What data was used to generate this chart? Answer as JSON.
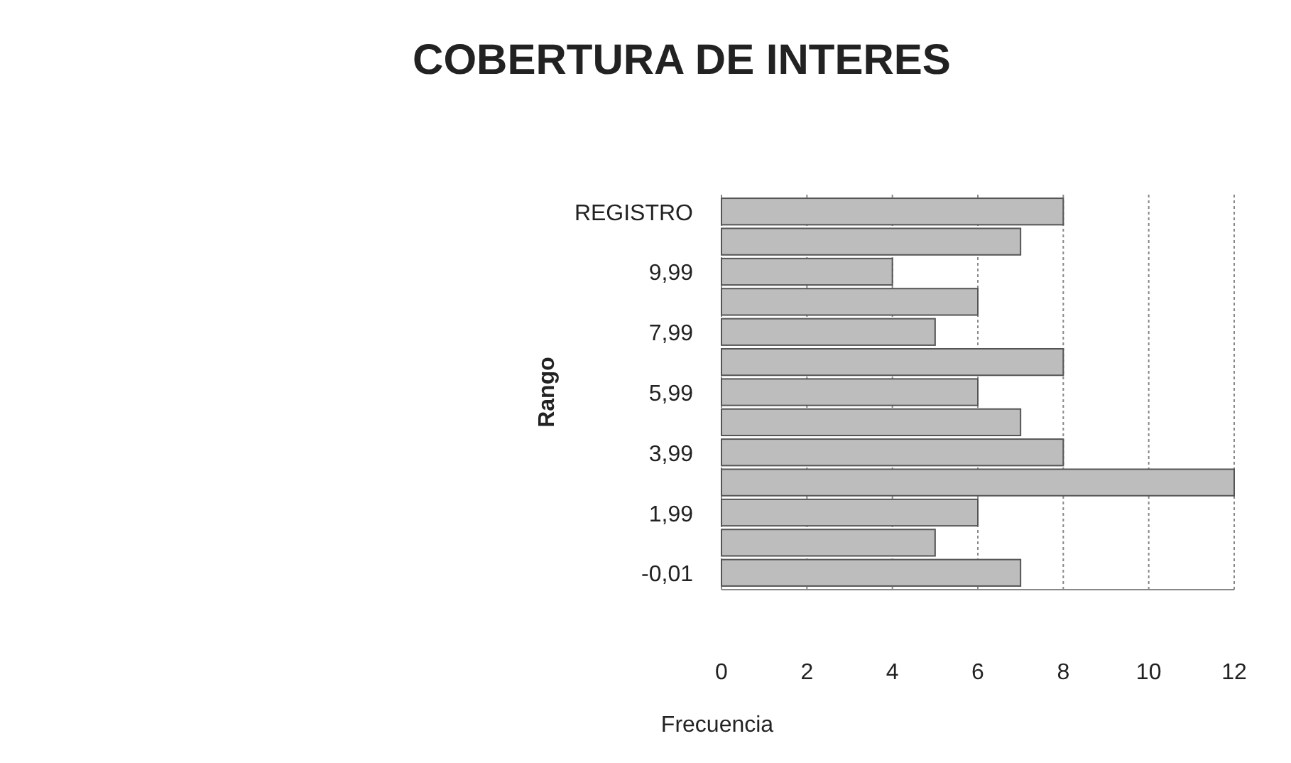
{
  "chart_data": {
    "type": "bar",
    "orientation": "horizontal",
    "title": "COBERTURA DE INTERES",
    "xlabel": "Frecuencia",
    "ylabel": "Rango",
    "categories": [
      "REGISTRO",
      null,
      "9,99",
      null,
      "7,99",
      null,
      "5,99",
      null,
      "3,99",
      null,
      "1,99",
      null,
      "-0,01"
    ],
    "values": [
      8,
      7,
      4,
      6,
      5,
      8,
      6,
      7,
      8,
      12,
      6,
      5,
      7
    ],
    "color": "#bdbdbd",
    "xlim": [
      0,
      12
    ],
    "xticks": [
      0,
      2,
      4,
      6,
      8,
      10,
      12
    ],
    "grid": "x"
  }
}
